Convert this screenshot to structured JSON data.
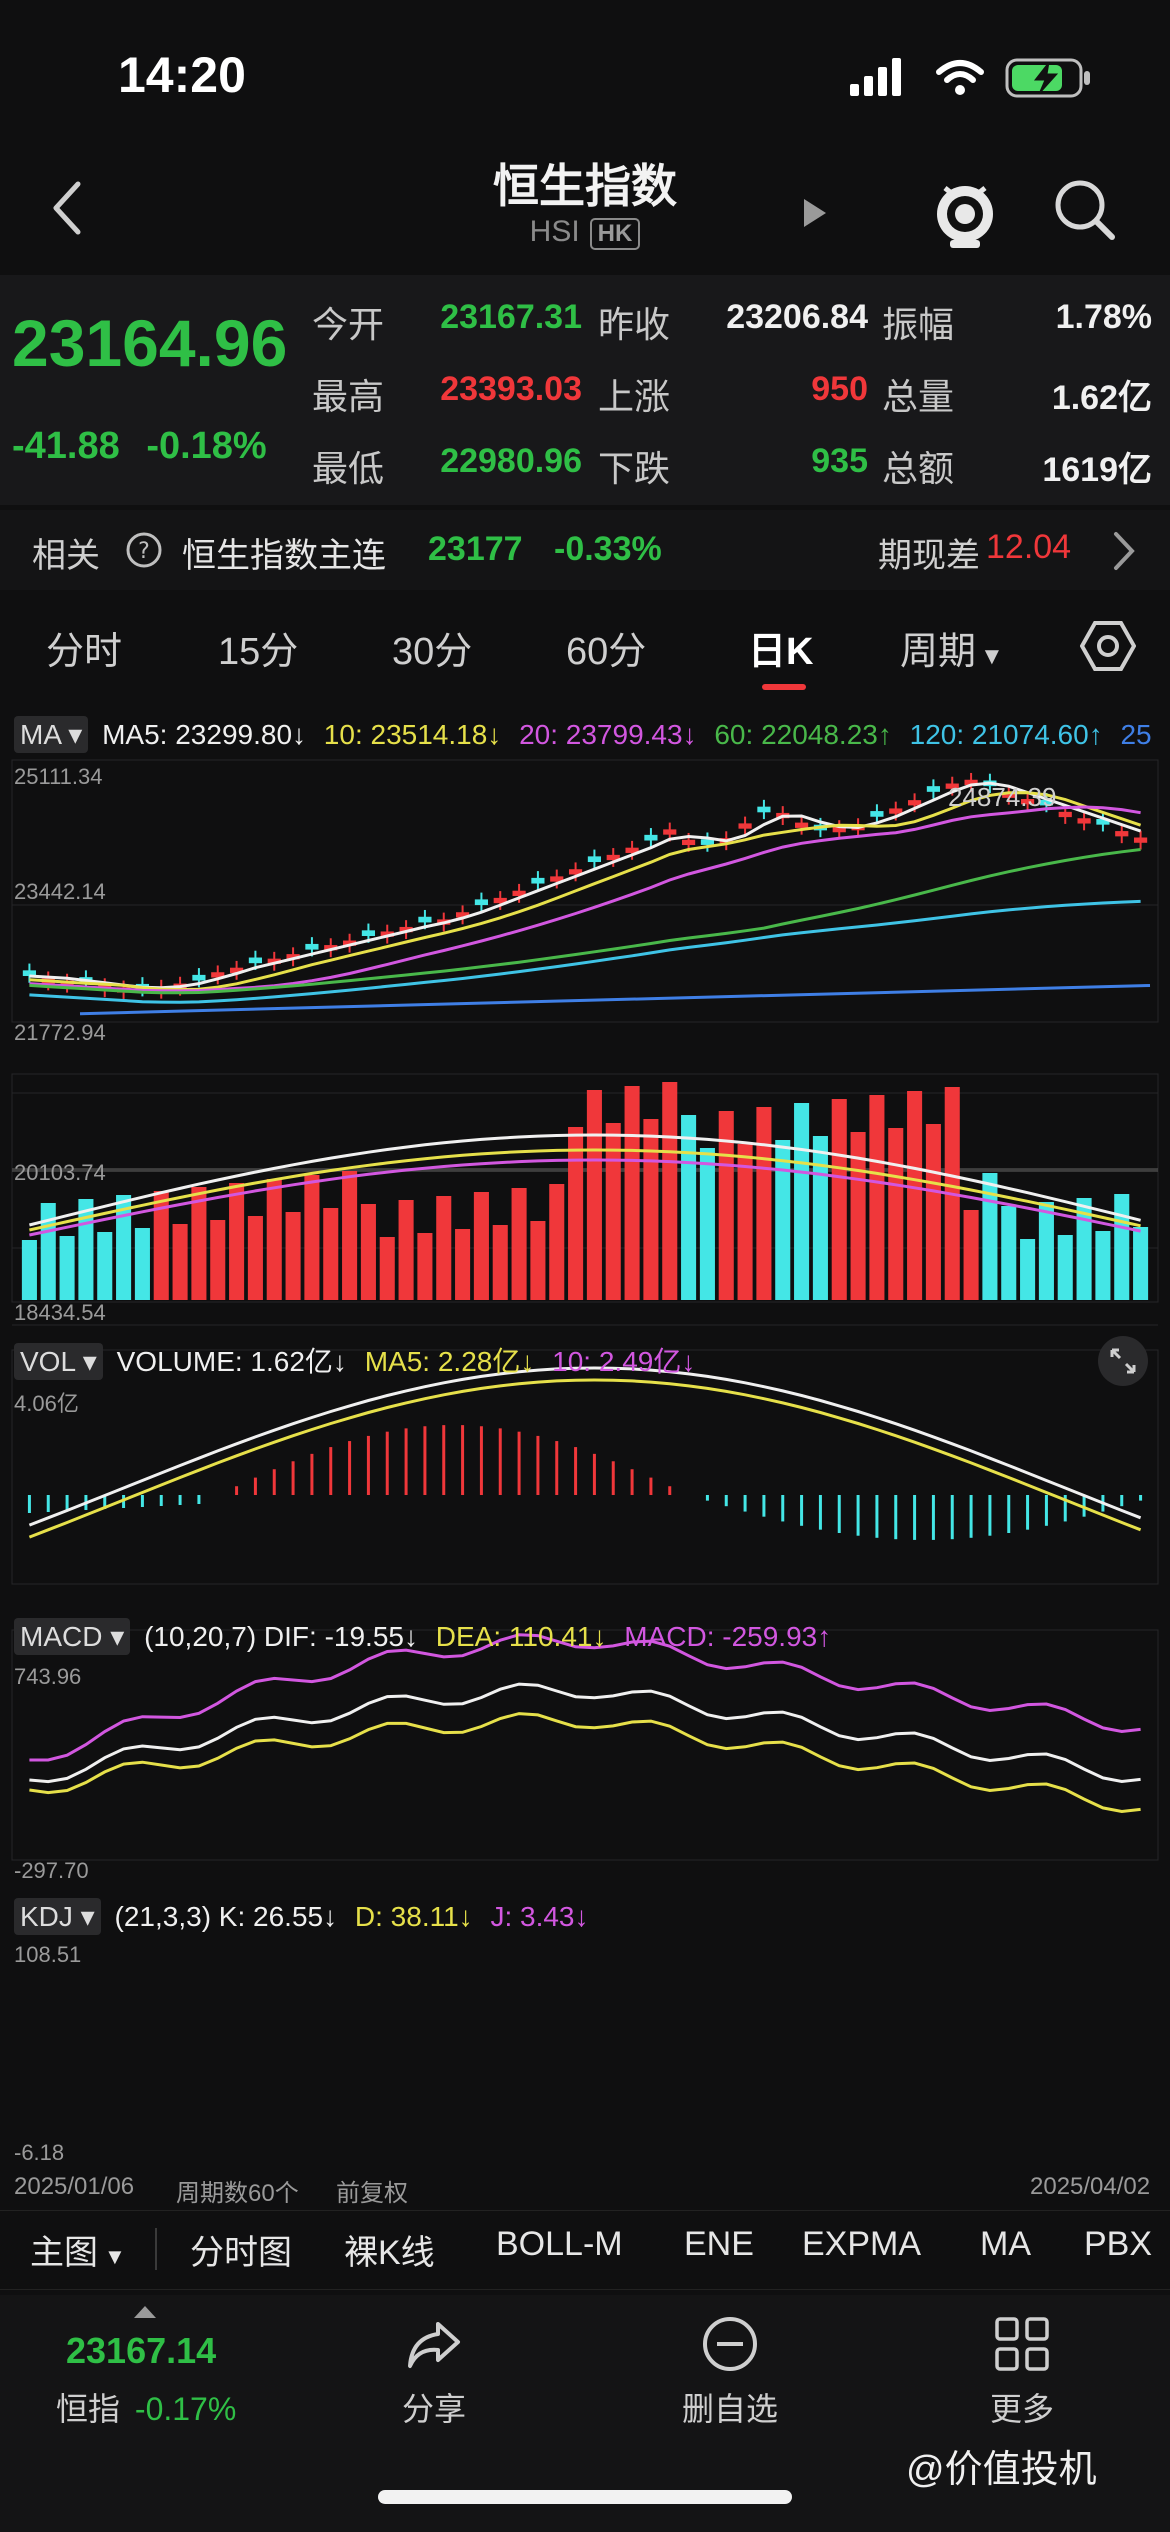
{
  "status_bar": {
    "time": "14:20"
  },
  "header": {
    "title": "恒生指数",
    "code": "HSI",
    "market": "HK"
  },
  "quote": {
    "price": "23164.96",
    "change": "-41.88",
    "change_pct": "-0.18%",
    "fields": [
      {
        "label": "今开",
        "value": "23167.31",
        "color": "green"
      },
      {
        "label": "昨收",
        "value": "23206.84",
        "color": "white"
      },
      {
        "label": "振幅",
        "value": "1.78%",
        "color": "white"
      },
      {
        "label": "最高",
        "value": "23393.03",
        "color": "red"
      },
      {
        "label": "上涨",
        "value": "950",
        "color": "red"
      },
      {
        "label": "总量",
        "value": "1.62亿",
        "color": "white"
      },
      {
        "label": "最低",
        "value": "22980.96",
        "color": "green"
      },
      {
        "label": "下跌",
        "value": "935",
        "color": "green"
      },
      {
        "label": "总额",
        "value": "1619亿",
        "color": "white"
      }
    ]
  },
  "related": {
    "label": "相关",
    "name": "恒生指数主连",
    "price": "23177",
    "pct": "-0.33%",
    "basis_label": "期现差",
    "basis_value": "12.04"
  },
  "tabs": [
    "分时",
    "15分",
    "30分",
    "60分",
    "日K",
    "周期"
  ],
  "ma_panel": {
    "selector": "MA",
    "items": [
      {
        "text": "MA5: 23299.80↓",
        "color": "#f0f0f0"
      },
      {
        "text": "10: 23514.18↓",
        "color": "#e6e04a"
      },
      {
        "text": "20: 23799.43↓",
        "color": "#d257e0"
      },
      {
        "text": "60: 22048.23↑",
        "color": "#49b84a"
      },
      {
        "text": "120: 21074.60↑",
        "color": "#3fc3e6"
      },
      {
        "text": "25",
        "color": "#3f7fe6"
      }
    ],
    "yaxis": [
      "25111.34",
      "23442.14",
      "21772.94",
      "20103.74",
      "18434.54"
    ],
    "high_label": "24874.39"
  },
  "vol_panel": {
    "selector": "VOL",
    "items": [
      {
        "text": "VOLUME: 1.62亿↓",
        "color": "#f0f0f0"
      },
      {
        "text": "MA5: 2.28亿↓",
        "color": "#e6e04a"
      },
      {
        "text": "10: 2.49亿↓",
        "color": "#d257e0"
      }
    ],
    "yaxis": [
      "4.06亿"
    ]
  },
  "macd_panel": {
    "selector": "MACD",
    "items": [
      {
        "text": "(10,20,7) DIF: -19.55↓",
        "color": "#f0f0f0"
      },
      {
        "text": "DEA: 110.41↓",
        "color": "#e6e04a"
      },
      {
        "text": "MACD: -259.93↑",
        "color": "#d257e0"
      }
    ],
    "yaxis": [
      "743.96",
      "-297.70"
    ]
  },
  "kdj_panel": {
    "selector": "KDJ",
    "items": [
      {
        "text": "(21,3,3) K: 26.55↓",
        "color": "#f0f0f0"
      },
      {
        "text": "D: 38.11↓",
        "color": "#e6e04a"
      },
      {
        "text": "J: 3.43↓",
        "color": "#d257e0"
      }
    ],
    "yaxis": [
      "108.51",
      "-6.18"
    ]
  },
  "chart_footer": {
    "start_date": "2025/01/06",
    "period_count": "周期数60个",
    "adjust": "前复权",
    "end_date": "2025/04/02"
  },
  "bottom_tabs": [
    "主图",
    "分时图",
    "裸K线",
    "BOLL-M",
    "ENE",
    "EXPMA",
    "MA",
    "PBX"
  ],
  "footer": {
    "index_price": "23167.14",
    "index_label": "恒指",
    "index_pct": "-0.17%",
    "share": "分享",
    "remove": "删自选",
    "more": "更多"
  },
  "watermark": "@价值投机"
}
